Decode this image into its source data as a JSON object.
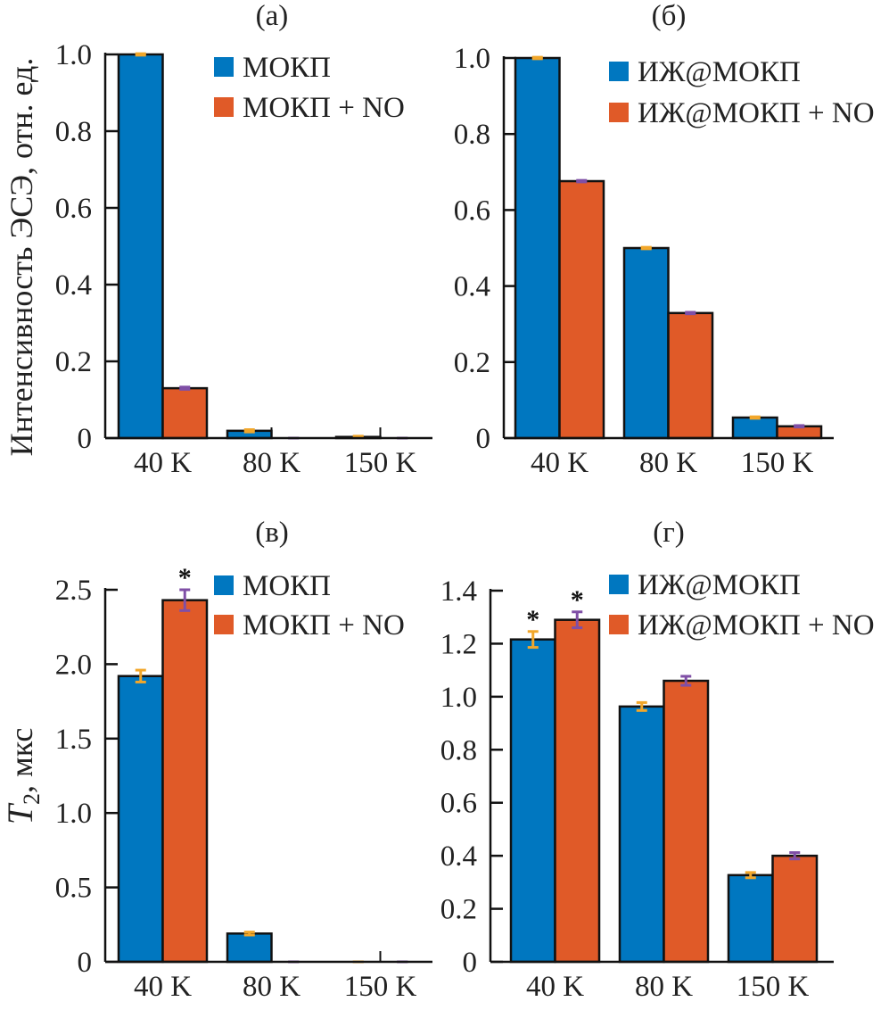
{
  "colors": {
    "series1": "#0077c0",
    "series2": "#e05a28",
    "err1": "#f2a72a",
    "err2": "#7f4fa6"
  },
  "ylabels": {
    "top": "Интенсивность ЭСЭ, отн. ед.",
    "bottom_main": "T",
    "bottom_sub": "2",
    "bottom_rest": ", мкс"
  },
  "chart_data": [
    {
      "type": "bar",
      "title": "(а)",
      "categories": [
        "40 K",
        "80 K",
        "150 K"
      ],
      "ylim": [
        0,
        1.0
      ],
      "yticks": [
        "0",
        "0.2",
        "0.4",
        "0.6",
        "0.8",
        "1.0"
      ],
      "legend": "top-right",
      "series": [
        {
          "name": "МОКП",
          "values": [
            1.0,
            0.019,
            0.003
          ],
          "errors": [
            0.002,
            0.003,
            0.002
          ]
        },
        {
          "name": "МОКП + NO",
          "values": [
            0.13,
            0.0,
            0.0
          ],
          "errors": [
            0.003,
            0.0,
            0.0
          ]
        }
      ],
      "annotations": []
    },
    {
      "type": "bar",
      "title": "(б)",
      "categories": [
        "40 K",
        "80 K",
        "150 K"
      ],
      "ylim": [
        0,
        1.0
      ],
      "yticks": [
        "0",
        "0.2",
        "0.4",
        "0.6",
        "0.8",
        "1.0"
      ],
      "legend": "top-right",
      "series": [
        {
          "name": "ИЖ@МОКП",
          "values": [
            1.0,
            0.5,
            0.054
          ],
          "errors": [
            0.002,
            0.002,
            0.002
          ]
        },
        {
          "name": "ИЖ@МОКП + NO",
          "values": [
            0.676,
            0.329,
            0.031
          ],
          "errors": [
            0.002,
            0.002,
            0.002
          ]
        }
      ],
      "annotations": []
    },
    {
      "type": "bar",
      "title": "(в)",
      "categories": [
        "40 K",
        "80 K",
        "150 K"
      ],
      "ylim": [
        0,
        2.5
      ],
      "yticks": [
        "0",
        "0.5",
        "1.0",
        "1.5",
        "2.0",
        "2.5"
      ],
      "legend": "top-right",
      "series": [
        {
          "name": "МОКП",
          "values": [
            1.92,
            0.19,
            0.0
          ],
          "errors": [
            0.04,
            0.01,
            0.0
          ]
        },
        {
          "name": "МОКП + NO",
          "values": [
            2.43,
            0.0,
            0.0
          ],
          "errors": [
            0.07,
            0.0,
            0.0
          ]
        }
      ],
      "annotations": [
        {
          "text": "*",
          "series": 1,
          "category": 0
        }
      ]
    },
    {
      "type": "bar",
      "title": "(г)",
      "categories": [
        "40 K",
        "80 K",
        "150 K"
      ],
      "ylim": [
        0,
        1.4
      ],
      "yticks": [
        "0",
        "0.2",
        "0.4",
        "0.6",
        "0.8",
        "1.0",
        "1.2",
        "1.4"
      ],
      "legend": "top-right",
      "series": [
        {
          "name": "ИЖ@МОКП",
          "values": [
            1.216,
            0.963,
            0.327
          ],
          "errors": [
            0.03,
            0.015,
            0.01
          ]
        },
        {
          "name": "ИЖ@МОКП + NO",
          "values": [
            1.29,
            1.06,
            0.4
          ],
          "errors": [
            0.03,
            0.017,
            0.012
          ]
        }
      ],
      "annotations": [
        {
          "text": "*",
          "series": 0,
          "category": 0
        },
        {
          "text": "*",
          "series": 1,
          "category": 0
        }
      ]
    }
  ]
}
